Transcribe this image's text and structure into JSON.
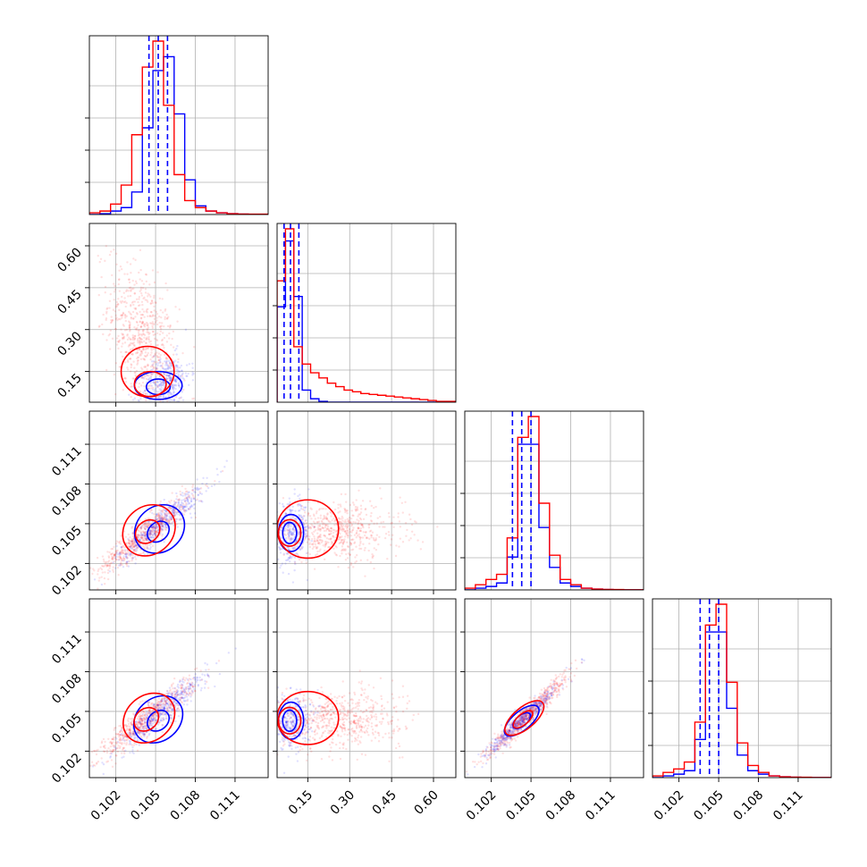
{
  "chart_data": {
    "type": "corner",
    "grid": true,
    "colors": {
      "series_a": "#ff0000",
      "series_b": "#0000ff",
      "grid": "#b0b0b0"
    },
    "series": [
      {
        "color": "#ff0000",
        "scatter_alpha": 0.1
      },
      {
        "color": "#0000ff",
        "scatter_alpha": 0.1
      }
    ],
    "params": [
      {
        "range": [
          0.1,
          0.1135
        ],
        "ticks": [
          0.102,
          0.105,
          0.108,
          0.111
        ],
        "tick_labels": [
          "0.102",
          "0.105",
          "0.108",
          "0.111"
        ]
      },
      {
        "range": [
          0.04,
          0.68
        ],
        "ticks": [
          0.15,
          0.3,
          0.45,
          0.6
        ],
        "tick_labels": [
          "0.15",
          "0.30",
          "0.45",
          "0.60"
        ]
      },
      {
        "range": [
          0.1,
          0.1135
        ],
        "ticks": [
          0.102,
          0.105,
          0.108,
          0.111
        ],
        "tick_labels": [
          "0.102",
          "0.105",
          "0.108",
          "0.111"
        ]
      },
      {
        "range": [
          0.1,
          0.1135
        ],
        "ticks": [
          0.102,
          0.105,
          0.108,
          0.111
        ],
        "tick_labels": [
          "0.102",
          "0.105",
          "0.108",
          "0.111"
        ]
      }
    ],
    "histograms": [
      {
        "bin_edges": [
          0.1,
          0.1008,
          0.1016,
          0.1024,
          0.1032,
          0.104,
          0.1048,
          0.1056,
          0.1064,
          0.1072,
          0.108,
          0.1088,
          0.1096,
          0.1104,
          0.1112,
          0.112,
          0.1135
        ],
        "red": [
          0.01,
          0.02,
          0.06,
          0.17,
          0.46,
          0.85,
          1.0,
          0.63,
          0.23,
          0.08,
          0.04,
          0.02,
          0.01,
          0.005,
          0.003,
          0.002
        ],
        "blue": [
          0.0,
          0.005,
          0.02,
          0.04,
          0.13,
          0.5,
          0.83,
          0.91,
          0.58,
          0.2,
          0.05,
          0.02,
          0.01,
          0.005,
          0.002,
          0.001
        ],
        "quantiles_blue": [
          0.1045,
          0.1052,
          0.1059
        ]
      },
      {
        "bin_edges": [
          0.04,
          0.07,
          0.1,
          0.13,
          0.16,
          0.19,
          0.22,
          0.25,
          0.28,
          0.31,
          0.34,
          0.37,
          0.4,
          0.43,
          0.46,
          0.49,
          0.52,
          0.55,
          0.58,
          0.61,
          0.64,
          0.68
        ],
        "red": [
          0.7,
          1.0,
          0.32,
          0.22,
          0.17,
          0.14,
          0.11,
          0.09,
          0.07,
          0.06,
          0.05,
          0.045,
          0.04,
          0.035,
          0.03,
          0.025,
          0.02,
          0.015,
          0.01,
          0.005,
          0.005
        ],
        "blue": [
          0.55,
          0.93,
          0.61,
          0.07,
          0.02,
          0.005,
          0.0,
          0.0,
          0.0,
          0.0,
          0.0,
          0.0,
          0.0,
          0.0,
          0.0,
          0.0,
          0.0,
          0.0,
          0.0,
          0.0,
          0.0
        ],
        "quantiles_blue": [
          0.065,
          0.088,
          0.118
        ]
      },
      {
        "bin_edges": [
          0.1,
          0.1008,
          0.1016,
          0.1024,
          0.1032,
          0.104,
          0.1048,
          0.1056,
          0.1064,
          0.1072,
          0.108,
          0.1088,
          0.1096,
          0.1104,
          0.1112,
          0.112,
          0.1135
        ],
        "red": [
          0.01,
          0.03,
          0.06,
          0.09,
          0.3,
          0.88,
          1.0,
          0.5,
          0.2,
          0.06,
          0.03,
          0.01,
          0.005,
          0.003,
          0.002,
          0.001
        ],
        "blue": [
          0.0,
          0.01,
          0.02,
          0.04,
          0.19,
          0.84,
          0.84,
          0.36,
          0.13,
          0.04,
          0.02,
          0.01,
          0.005,
          0.002,
          0.001,
          0.0
        ],
        "quantiles_blue": [
          0.1036,
          0.1043,
          0.105
        ]
      },
      {
        "bin_edges": [
          0.1,
          0.1008,
          0.1016,
          0.1024,
          0.1032,
          0.104,
          0.1048,
          0.1056,
          0.1064,
          0.1072,
          0.108,
          0.1088,
          0.1096,
          0.1104,
          0.1112,
          0.112,
          0.1135
        ],
        "red": [
          0.01,
          0.03,
          0.05,
          0.09,
          0.32,
          0.88,
          1.0,
          0.55,
          0.2,
          0.07,
          0.03,
          0.01,
          0.005,
          0.003,
          0.002,
          0.001
        ],
        "blue": [
          0.0,
          0.01,
          0.02,
          0.04,
          0.22,
          0.84,
          0.84,
          0.4,
          0.13,
          0.04,
          0.02,
          0.01,
          0.005,
          0.002,
          0.001,
          0.0
        ],
        "quantiles_blue": [
          0.1036,
          0.1043,
          0.105
        ]
      }
    ],
    "pairs": [
      {
        "x": 0,
        "y": 1,
        "red": {
          "mean": [
            0.104,
            0.26
          ],
          "sd": [
            0.0013,
            0.14
          ],
          "rho": -0.45,
          "n": 700
        },
        "blue": {
          "mean": [
            0.1058,
            0.11
          ],
          "sd": [
            0.0009,
            0.05
          ],
          "rho": 0.35,
          "n": 350
        },
        "red_contours": [
          {
            "c": [
              0.1044,
              0.15
            ],
            "r": [
              0.002,
              0.09
            ]
          },
          {
            "c": [
              0.1046,
              0.105
            ],
            "r": [
              0.0012,
              0.045
            ]
          }
        ],
        "blue_contours": [
          {
            "c": [
              0.1052,
              0.1
            ],
            "r": [
              0.0018,
              0.05
            ]
          },
          {
            "c": [
              0.1052,
              0.095
            ],
            "r": [
              0.0009,
              0.028
            ]
          }
        ]
      },
      {
        "x": 0,
        "y": 2,
        "red": {
          "mean": [
            0.1043,
            0.1043
          ],
          "sd": [
            0.0018,
            0.0015
          ],
          "rho": 0.92,
          "n": 650
        },
        "blue": {
          "mean": [
            0.1055,
            0.1051
          ],
          "sd": [
            0.0017,
            0.0015
          ],
          "rho": 0.93,
          "n": 450
        },
        "red_contours": [
          {
            "c": [
              0.1045,
              0.1045
            ],
            "r": [
              0.0021,
              0.0018
            ]
          },
          {
            "c": [
              0.1044,
              0.1044
            ],
            "r": [
              0.001,
              0.0008
            ]
          }
        ],
        "blue_contours": [
          {
            "c": [
              0.1053,
              0.1046
            ],
            "r": [
              0.002,
              0.0017
            ]
          },
          {
            "c": [
              0.1052,
              0.1044
            ],
            "r": [
              0.0009,
              0.0007
            ]
          }
        ]
      },
      {
        "x": 1,
        "y": 2,
        "red": {
          "mean": [
            0.25,
            0.1044
          ],
          "sd": [
            0.12,
            0.0011
          ],
          "rho": 0.05,
          "n": 650
        },
        "blue": {
          "mean": [
            0.09,
            0.1043
          ],
          "sd": [
            0.035,
            0.0011
          ],
          "rho": 0.1,
          "n": 350
        },
        "red_contours": [
          {
            "c": [
              0.15,
              0.1046
            ],
            "r": [
              0.11,
              0.0022
            ]
          },
          {
            "c": [
              0.085,
              0.1043
            ],
            "r": [
              0.04,
              0.001
            ]
          }
        ],
        "blue_contours": [
          {
            "c": [
              0.09,
              0.1043
            ],
            "r": [
              0.045,
              0.0014
            ]
          },
          {
            "c": [
              0.085,
              0.1043
            ],
            "r": [
              0.025,
              0.0008
            ]
          }
        ]
      },
      {
        "x": 0,
        "y": 3,
        "red": {
          "mean": [
            0.1043,
            0.1044
          ],
          "sd": [
            0.0018,
            0.0015
          ],
          "rho": 0.92,
          "n": 650
        },
        "blue": {
          "mean": [
            0.1055,
            0.105
          ],
          "sd": [
            0.0017,
            0.0015
          ],
          "rho": 0.93,
          "n": 450
        },
        "red_contours": [
          {
            "c": [
              0.1045,
              0.1045
            ],
            "r": [
              0.0021,
              0.0017
            ]
          },
          {
            "c": [
              0.1043,
              0.1044
            ],
            "r": [
              0.001,
              0.0008
            ]
          }
        ],
        "blue_contours": [
          {
            "c": [
              0.1052,
              0.1044
            ],
            "r": [
              0.002,
              0.0016
            ]
          },
          {
            "c": [
              0.1052,
              0.1043
            ],
            "r": [
              0.0009,
              0.0007
            ]
          }
        ]
      },
      {
        "x": 1,
        "y": 3,
        "red": {
          "mean": [
            0.25,
            0.1044
          ],
          "sd": [
            0.12,
            0.0011
          ],
          "rho": 0.05,
          "n": 650
        },
        "blue": {
          "mean": [
            0.09,
            0.1043
          ],
          "sd": [
            0.035,
            0.0011
          ],
          "rho": 0.1,
          "n": 350
        },
        "red_contours": [
          {
            "c": [
              0.15,
              0.1045
            ],
            "r": [
              0.11,
              0.002
            ]
          },
          {
            "c": [
              0.085,
              0.1043
            ],
            "r": [
              0.04,
              0.001
            ]
          }
        ],
        "blue_contours": [
          {
            "c": [
              0.09,
              0.1043
            ],
            "r": [
              0.045,
              0.0014
            ]
          },
          {
            "c": [
              0.085,
              0.1043
            ],
            "r": [
              0.025,
              0.0008
            ]
          }
        ]
      },
      {
        "x": 2,
        "y": 3,
        "red": {
          "mean": [
            0.1046,
            0.1046
          ],
          "sd": [
            0.0016,
            0.0016
          ],
          "rho": 0.97,
          "n": 650
        },
        "blue": {
          "mean": [
            0.1044,
            0.1044
          ],
          "sd": [
            0.0014,
            0.0014
          ],
          "rho": 0.97,
          "n": 450
        },
        "red_contours": [
          {
            "c": [
              0.1045,
              0.1045
            ],
            "r": [
              0.0018,
              0.0008
            ]
          },
          {
            "c": [
              0.1044,
              0.1044
            ],
            "r": [
              0.0009,
              0.0004
            ]
          }
        ],
        "blue_contours": [
          {
            "c": [
              0.1043,
              0.1043
            ],
            "r": [
              0.0016,
              0.0007
            ]
          },
          {
            "c": [
              0.1043,
              0.1043
            ],
            "r": [
              0.0008,
              0.0004
            ]
          }
        ]
      }
    ]
  }
}
